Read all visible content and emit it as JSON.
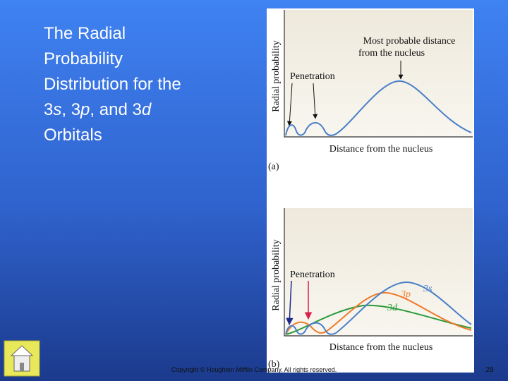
{
  "title": {
    "parts": [
      "The Radial",
      "Probability",
      "Distribution for the",
      "3",
      "s",
      ", 3",
      "p",
      ", and 3",
      "d",
      "Orbitals"
    ]
  },
  "figure": {
    "panel_a": {
      "y_label": "Radial probability",
      "annotation_lines": [
        "Most probable distance",
        "from the nucleus"
      ],
      "penetration": "Penetration",
      "x_label": "Distance from the nucleus",
      "tag": "(a)"
    },
    "panel_b": {
      "y_label": "Radial probability",
      "penetration": "Penetration",
      "curve_labels": [
        "3s",
        "3p",
        "3d"
      ],
      "x_label": "Distance from the nucleus",
      "tag": "(b)"
    }
  },
  "footer": {
    "copyright": "Copyright © Houghton Mifflin Company. All rights reserved.",
    "page_number": "29"
  }
}
